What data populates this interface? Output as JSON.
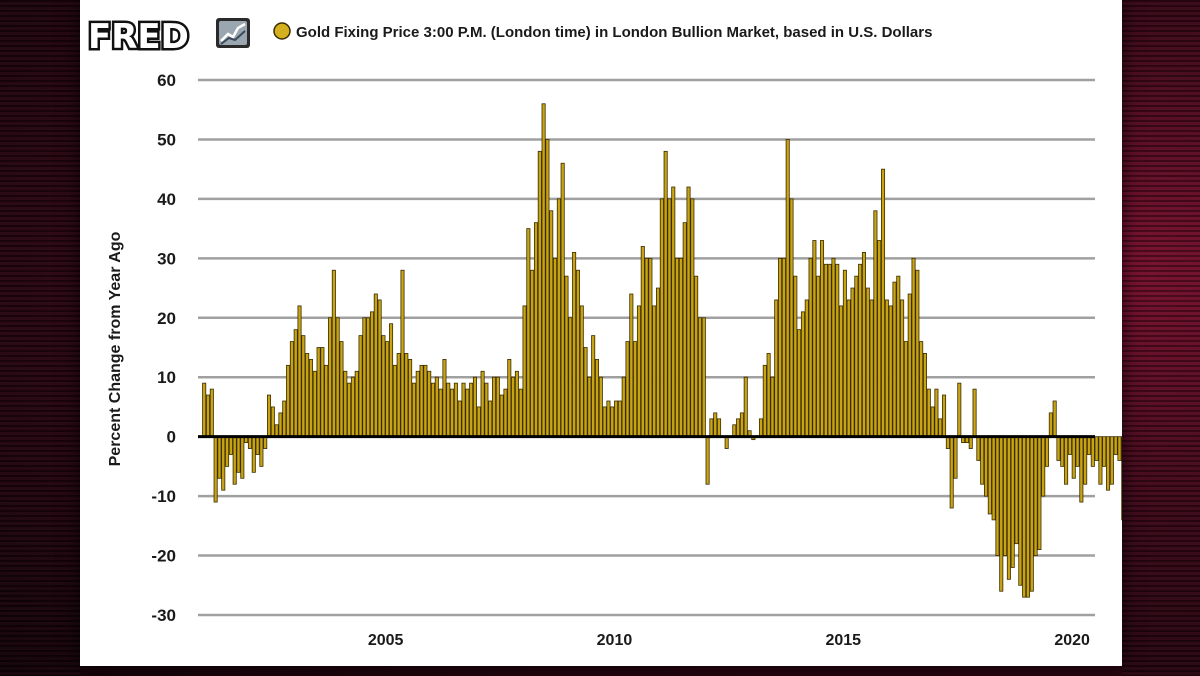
{
  "logo": {
    "text": "FRED",
    "icon": "fred-chart-icon"
  },
  "colors": {
    "bar_fill": "#c8a414",
    "bar_stroke": "#3a2c00",
    "grid": "#a0a0a0",
    "zero_line": "#000000",
    "legend_marker": "#d4b020"
  },
  "chart_data": {
    "type": "bar",
    "title": "",
    "series": [
      {
        "name": "Gold Fixing Price 3:00 P.M. (London time) in London Bullion Market, based in U.S. Dollars"
      }
    ],
    "xlabel": "",
    "ylabel": "Percent Change from Year Ago",
    "ylim": [
      -30,
      60
    ],
    "xlim": [
      2000.9,
      2020.5
    ],
    "y_ticks": [
      "60",
      "50",
      "40",
      "30",
      "20",
      "10",
      "0",
      "-10",
      "-20",
      "-30"
    ],
    "y_tick_values": [
      60,
      50,
      40,
      30,
      20,
      10,
      0,
      -10,
      -20,
      -30
    ],
    "x_ticks": [
      "2005",
      "2010",
      "2015",
      "2020"
    ],
    "x_tick_values": [
      2005,
      2010,
      2015,
      2020
    ],
    "grid": true,
    "legend_position": "top",
    "start": "2001-01",
    "frequency": "monthly",
    "values": [
      9,
      7,
      8,
      -11,
      -7,
      -9,
      -5,
      -3,
      -8,
      -6,
      -7,
      -1,
      -2,
      -6,
      -3,
      -5,
      -2,
      7,
      5,
      2,
      4,
      6,
      12,
      16,
      18,
      22,
      17,
      14,
      13,
      11,
      15,
      15,
      12,
      20,
      28,
      20,
      16,
      11,
      9,
      10,
      11,
      17,
      20,
      20,
      21,
      24,
      23,
      17,
      16,
      19,
      12,
      14,
      28,
      14,
      13,
      9,
      11,
      12,
      12,
      11,
      9,
      10,
      8,
      13,
      9,
      8,
      9,
      6,
      9,
      8,
      9,
      10,
      5,
      11,
      9,
      6,
      10,
      10,
      7,
      8,
      13,
      10,
      11,
      8,
      22,
      35,
      28,
      36,
      48,
      56,
      50,
      38,
      30,
      40,
      46,
      27,
      20,
      31,
      28,
      22,
      15,
      10,
      17,
      13,
      10,
      5,
      6,
      5,
      6,
      6,
      10,
      16,
      24,
      16,
      22,
      32,
      30,
      30,
      22,
      25,
      40,
      48,
      40,
      42,
      30,
      30,
      36,
      42,
      40,
      27,
      20,
      20,
      -8,
      3,
      4,
      3,
      0,
      -2,
      0,
      2,
      3,
      4,
      10,
      1,
      -0.5,
      0,
      3,
      12,
      14,
      10,
      23,
      30,
      30,
      50,
      40,
      27,
      18,
      21,
      23,
      30,
      33,
      27,
      33,
      29,
      29,
      30,
      29,
      22,
      28,
      23,
      25,
      27,
      29,
      31,
      25,
      23,
      38,
      33,
      45,
      23,
      22,
      26,
      27,
      23,
      16,
      24,
      30,
      28,
      16,
      14,
      8,
      5,
      8,
      3,
      7,
      -2,
      -12,
      -7,
      9,
      -1,
      -1,
      -2,
      8,
      -4,
      -8,
      -10,
      -13,
      -14,
      -20,
      -26,
      -20,
      -24,
      -22,
      -18,
      -25,
      -27,
      -27,
      -26,
      -20,
      -19,
      -10,
      -5,
      4,
      6,
      -4,
      -5,
      -8,
      -3,
      -7,
      -5,
      -11,
      -8,
      -3,
      -5,
      -4,
      -8,
      -5,
      -9,
      -8,
      -3,
      -4,
      -14,
      -12,
      -10,
      -8,
      -5,
      -11,
      -10,
      -12,
      -11,
      -11,
      -7,
      -11,
      1,
      3,
      7,
      9,
      14,
      13,
      16,
      22,
      19,
      15,
      12,
      14,
      11,
      11,
      6,
      8,
      3,
      2,
      -1,
      2,
      4,
      2,
      -7,
      -5,
      -7,
      0,
      -2,
      -3,
      -2,
      10,
      12,
      10,
      11,
      5,
      4,
      5,
      3,
      3,
      -3,
      -1,
      -3,
      -5,
      -9,
      -7,
      -3,
      -7,
      -2,
      -2,
      0,
      1,
      -1,
      0,
      -2,
      0,
      -2,
      -3,
      2,
      12,
      16,
      26,
      25,
      22,
      22,
      20,
      19,
      18,
      23,
      24,
      28,
      33,
      33,
      27
    ]
  }
}
